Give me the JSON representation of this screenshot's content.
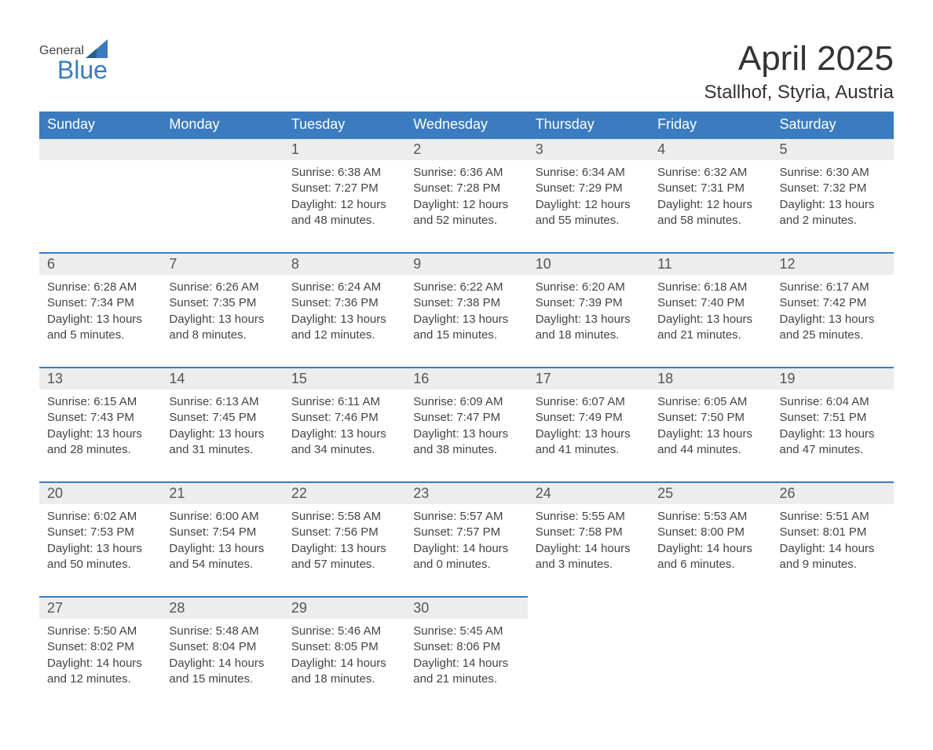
{
  "logo": {
    "text_general": "General",
    "text_blue": "Blue"
  },
  "header": {
    "month_title": "April 2025",
    "location": "Stallhof, Styria, Austria"
  },
  "colors": {
    "header_bg": "#3b7bbf",
    "header_text": "#ffffff",
    "day_number_bg": "#ededed",
    "day_number_border": "#3b7bbf",
    "body_text": "#444444"
  },
  "weekdays": [
    "Sunday",
    "Monday",
    "Tuesday",
    "Wednesday",
    "Thursday",
    "Friday",
    "Saturday"
  ],
  "weeks": [
    {
      "numbers": [
        "",
        "",
        "1",
        "2",
        "3",
        "4",
        "5"
      ],
      "cells": [
        null,
        null,
        {
          "sunrise": "Sunrise: 6:38 AM",
          "sunset": "Sunset: 7:27 PM",
          "daylight1": "Daylight: 12 hours",
          "daylight2": "and 48 minutes."
        },
        {
          "sunrise": "Sunrise: 6:36 AM",
          "sunset": "Sunset: 7:28 PM",
          "daylight1": "Daylight: 12 hours",
          "daylight2": "and 52 minutes."
        },
        {
          "sunrise": "Sunrise: 6:34 AM",
          "sunset": "Sunset: 7:29 PM",
          "daylight1": "Daylight: 12 hours",
          "daylight2": "and 55 minutes."
        },
        {
          "sunrise": "Sunrise: 6:32 AM",
          "sunset": "Sunset: 7:31 PM",
          "daylight1": "Daylight: 12 hours",
          "daylight2": "and 58 minutes."
        },
        {
          "sunrise": "Sunrise: 6:30 AM",
          "sunset": "Sunset: 7:32 PM",
          "daylight1": "Daylight: 13 hours",
          "daylight2": "and 2 minutes."
        }
      ]
    },
    {
      "numbers": [
        "6",
        "7",
        "8",
        "9",
        "10",
        "11",
        "12"
      ],
      "cells": [
        {
          "sunrise": "Sunrise: 6:28 AM",
          "sunset": "Sunset: 7:34 PM",
          "daylight1": "Daylight: 13 hours",
          "daylight2": "and 5 minutes."
        },
        {
          "sunrise": "Sunrise: 6:26 AM",
          "sunset": "Sunset: 7:35 PM",
          "daylight1": "Daylight: 13 hours",
          "daylight2": "and 8 minutes."
        },
        {
          "sunrise": "Sunrise: 6:24 AM",
          "sunset": "Sunset: 7:36 PM",
          "daylight1": "Daylight: 13 hours",
          "daylight2": "and 12 minutes."
        },
        {
          "sunrise": "Sunrise: 6:22 AM",
          "sunset": "Sunset: 7:38 PM",
          "daylight1": "Daylight: 13 hours",
          "daylight2": "and 15 minutes."
        },
        {
          "sunrise": "Sunrise: 6:20 AM",
          "sunset": "Sunset: 7:39 PM",
          "daylight1": "Daylight: 13 hours",
          "daylight2": "and 18 minutes."
        },
        {
          "sunrise": "Sunrise: 6:18 AM",
          "sunset": "Sunset: 7:40 PM",
          "daylight1": "Daylight: 13 hours",
          "daylight2": "and 21 minutes."
        },
        {
          "sunrise": "Sunrise: 6:17 AM",
          "sunset": "Sunset: 7:42 PM",
          "daylight1": "Daylight: 13 hours",
          "daylight2": "and 25 minutes."
        }
      ]
    },
    {
      "numbers": [
        "13",
        "14",
        "15",
        "16",
        "17",
        "18",
        "19"
      ],
      "cells": [
        {
          "sunrise": "Sunrise: 6:15 AM",
          "sunset": "Sunset: 7:43 PM",
          "daylight1": "Daylight: 13 hours",
          "daylight2": "and 28 minutes."
        },
        {
          "sunrise": "Sunrise: 6:13 AM",
          "sunset": "Sunset: 7:45 PM",
          "daylight1": "Daylight: 13 hours",
          "daylight2": "and 31 minutes."
        },
        {
          "sunrise": "Sunrise: 6:11 AM",
          "sunset": "Sunset: 7:46 PM",
          "daylight1": "Daylight: 13 hours",
          "daylight2": "and 34 minutes."
        },
        {
          "sunrise": "Sunrise: 6:09 AM",
          "sunset": "Sunset: 7:47 PM",
          "daylight1": "Daylight: 13 hours",
          "daylight2": "and 38 minutes."
        },
        {
          "sunrise": "Sunrise: 6:07 AM",
          "sunset": "Sunset: 7:49 PM",
          "daylight1": "Daylight: 13 hours",
          "daylight2": "and 41 minutes."
        },
        {
          "sunrise": "Sunrise: 6:05 AM",
          "sunset": "Sunset: 7:50 PM",
          "daylight1": "Daylight: 13 hours",
          "daylight2": "and 44 minutes."
        },
        {
          "sunrise": "Sunrise: 6:04 AM",
          "sunset": "Sunset: 7:51 PM",
          "daylight1": "Daylight: 13 hours",
          "daylight2": "and 47 minutes."
        }
      ]
    },
    {
      "numbers": [
        "20",
        "21",
        "22",
        "23",
        "24",
        "25",
        "26"
      ],
      "cells": [
        {
          "sunrise": "Sunrise: 6:02 AM",
          "sunset": "Sunset: 7:53 PM",
          "daylight1": "Daylight: 13 hours",
          "daylight2": "and 50 minutes."
        },
        {
          "sunrise": "Sunrise: 6:00 AM",
          "sunset": "Sunset: 7:54 PM",
          "daylight1": "Daylight: 13 hours",
          "daylight2": "and 54 minutes."
        },
        {
          "sunrise": "Sunrise: 5:58 AM",
          "sunset": "Sunset: 7:56 PM",
          "daylight1": "Daylight: 13 hours",
          "daylight2": "and 57 minutes."
        },
        {
          "sunrise": "Sunrise: 5:57 AM",
          "sunset": "Sunset: 7:57 PM",
          "daylight1": "Daylight: 14 hours",
          "daylight2": "and 0 minutes."
        },
        {
          "sunrise": "Sunrise: 5:55 AM",
          "sunset": "Sunset: 7:58 PM",
          "daylight1": "Daylight: 14 hours",
          "daylight2": "and 3 minutes."
        },
        {
          "sunrise": "Sunrise: 5:53 AM",
          "sunset": "Sunset: 8:00 PM",
          "daylight1": "Daylight: 14 hours",
          "daylight2": "and 6 minutes."
        },
        {
          "sunrise": "Sunrise: 5:51 AM",
          "sunset": "Sunset: 8:01 PM",
          "daylight1": "Daylight: 14 hours",
          "daylight2": "and 9 minutes."
        }
      ]
    },
    {
      "numbers": [
        "27",
        "28",
        "29",
        "30",
        "",
        "",
        ""
      ],
      "cells": [
        {
          "sunrise": "Sunrise: 5:50 AM",
          "sunset": "Sunset: 8:02 PM",
          "daylight1": "Daylight: 14 hours",
          "daylight2": "and 12 minutes."
        },
        {
          "sunrise": "Sunrise: 5:48 AM",
          "sunset": "Sunset: 8:04 PM",
          "daylight1": "Daylight: 14 hours",
          "daylight2": "and 15 minutes."
        },
        {
          "sunrise": "Sunrise: 5:46 AM",
          "sunset": "Sunset: 8:05 PM",
          "daylight1": "Daylight: 14 hours",
          "daylight2": "and 18 minutes."
        },
        {
          "sunrise": "Sunrise: 5:45 AM",
          "sunset": "Sunset: 8:06 PM",
          "daylight1": "Daylight: 14 hours",
          "daylight2": "and 21 minutes."
        },
        null,
        null,
        null
      ]
    }
  ]
}
